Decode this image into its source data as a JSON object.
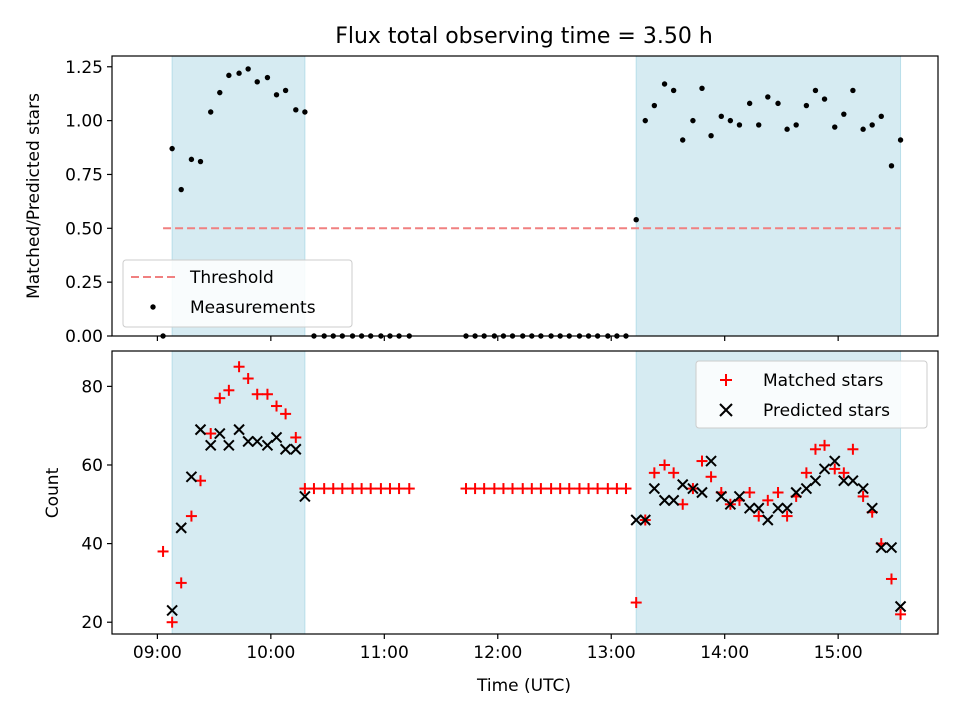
{
  "chart_data": [
    {
      "type": "scatter",
      "title": "Flux total observing time = 3.50 h",
      "xlabel": "",
      "ylabel": "Matched/Predicted stars",
      "xlim": [
        8.6,
        15.88
      ],
      "ylim": [
        0.0,
        1.3
      ],
      "yticks": [
        0.0,
        0.25,
        0.5,
        0.75,
        1.0,
        1.25
      ],
      "ytick_labels": [
        "0.00",
        "0.25",
        "0.50",
        "0.75",
        "1.00",
        "1.25"
      ],
      "xticks": [
        9,
        10,
        11,
        12,
        13,
        14,
        15
      ],
      "shaded_regions": [
        [
          9.13,
          10.3
        ],
        [
          13.22,
          15.55
        ]
      ],
      "threshold": {
        "name": "Threshold",
        "value": 0.5,
        "x_range": [
          9.05,
          15.55
        ],
        "color": "#f08080"
      },
      "legend": {
        "position": "lower-left",
        "entries": [
          "Threshold",
          "Measurements"
        ]
      },
      "series": [
        {
          "name": "Measurements",
          "color": "#000000",
          "marker": "dot",
          "points": [
            [
              9.05,
              0.0
            ],
            [
              9.13,
              0.87
            ],
            [
              9.21,
              0.68
            ],
            [
              9.3,
              0.82
            ],
            [
              9.38,
              0.81
            ],
            [
              9.47,
              1.04
            ],
            [
              9.55,
              1.13
            ],
            [
              9.63,
              1.21
            ],
            [
              9.72,
              1.22
            ],
            [
              9.8,
              1.24
            ],
            [
              9.88,
              1.18
            ],
            [
              9.97,
              1.2
            ],
            [
              10.05,
              1.12
            ],
            [
              10.13,
              1.14
            ],
            [
              10.22,
              1.05
            ],
            [
              10.3,
              1.04
            ],
            [
              10.38,
              0.0
            ],
            [
              10.47,
              0.0
            ],
            [
              10.55,
              0.0
            ],
            [
              10.63,
              0.0
            ],
            [
              10.72,
              0.0
            ],
            [
              10.8,
              0.0
            ],
            [
              10.88,
              0.0
            ],
            [
              10.97,
              0.0
            ],
            [
              11.05,
              0.0
            ],
            [
              11.13,
              0.0
            ],
            [
              11.22,
              0.0
            ],
            [
              11.72,
              0.0
            ],
            [
              11.8,
              0.0
            ],
            [
              11.88,
              0.0
            ],
            [
              11.97,
              0.0
            ],
            [
              12.05,
              0.0
            ],
            [
              12.13,
              0.0
            ],
            [
              12.22,
              0.0
            ],
            [
              12.3,
              0.0
            ],
            [
              12.38,
              0.0
            ],
            [
              12.47,
              0.0
            ],
            [
              12.55,
              0.0
            ],
            [
              12.63,
              0.0
            ],
            [
              12.72,
              0.0
            ],
            [
              12.8,
              0.0
            ],
            [
              12.88,
              0.0
            ],
            [
              12.97,
              0.0
            ],
            [
              13.05,
              0.0
            ],
            [
              13.13,
              0.0
            ],
            [
              13.22,
              0.54
            ],
            [
              13.3,
              1.0
            ],
            [
              13.38,
              1.07
            ],
            [
              13.47,
              1.17
            ],
            [
              13.55,
              1.14
            ],
            [
              13.63,
              0.91
            ],
            [
              13.72,
              1.0
            ],
            [
              13.8,
              1.15
            ],
            [
              13.88,
              0.93
            ],
            [
              13.97,
              1.02
            ],
            [
              14.05,
              1.0
            ],
            [
              14.13,
              0.98
            ],
            [
              14.22,
              1.08
            ],
            [
              14.3,
              0.98
            ],
            [
              14.38,
              1.11
            ],
            [
              14.47,
              1.08
            ],
            [
              14.55,
              0.96
            ],
            [
              14.63,
              0.98
            ],
            [
              14.72,
              1.07
            ],
            [
              14.8,
              1.14
            ],
            [
              14.88,
              1.1
            ],
            [
              14.97,
              0.97
            ],
            [
              15.05,
              1.03
            ],
            [
              15.13,
              1.14
            ],
            [
              15.22,
              0.96
            ],
            [
              15.3,
              0.98
            ],
            [
              15.38,
              1.02
            ],
            [
              15.47,
              0.79
            ],
            [
              15.55,
              0.91
            ]
          ]
        }
      ]
    },
    {
      "type": "scatter",
      "title": "",
      "xlabel": "Time (UTC)",
      "ylabel": "Count",
      "xlim": [
        8.6,
        15.88
      ],
      "ylim": [
        17,
        89
      ],
      "yticks": [
        20,
        40,
        60,
        80
      ],
      "ytick_labels": [
        "20",
        "40",
        "60",
        "80"
      ],
      "xticks": [
        9,
        10,
        11,
        12,
        13,
        14,
        15
      ],
      "xtick_labels": [
        "09:00",
        "10:00",
        "11:00",
        "12:00",
        "13:00",
        "14:00",
        "15:00"
      ],
      "shaded_regions": [
        [
          9.13,
          10.3
        ],
        [
          13.22,
          15.55
        ]
      ],
      "legend": {
        "position": "top-right",
        "entries": [
          "Matched stars",
          "Predicted stars"
        ]
      },
      "series": [
        {
          "name": "Matched stars",
          "color": "#ff0000",
          "marker": "plus",
          "points": [
            [
              9.05,
              38
            ],
            [
              9.13,
              20
            ],
            [
              9.21,
              30
            ],
            [
              9.3,
              47
            ],
            [
              9.38,
              56
            ],
            [
              9.47,
              68
            ],
            [
              9.55,
              77
            ],
            [
              9.63,
              79
            ],
            [
              9.72,
              85
            ],
            [
              9.8,
              82
            ],
            [
              9.88,
              78
            ],
            [
              9.97,
              78
            ],
            [
              10.05,
              75
            ],
            [
              10.13,
              73
            ],
            [
              10.22,
              67
            ],
            [
              10.3,
              54
            ],
            [
              10.38,
              54
            ],
            [
              10.47,
              54
            ],
            [
              10.55,
              54
            ],
            [
              10.63,
              54
            ],
            [
              10.72,
              54
            ],
            [
              10.8,
              54
            ],
            [
              10.88,
              54
            ],
            [
              10.97,
              54
            ],
            [
              11.05,
              54
            ],
            [
              11.13,
              54
            ],
            [
              11.22,
              54
            ],
            [
              11.72,
              54
            ],
            [
              11.8,
              54
            ],
            [
              11.88,
              54
            ],
            [
              11.97,
              54
            ],
            [
              12.05,
              54
            ],
            [
              12.13,
              54
            ],
            [
              12.22,
              54
            ],
            [
              12.3,
              54
            ],
            [
              12.38,
              54
            ],
            [
              12.47,
              54
            ],
            [
              12.55,
              54
            ],
            [
              12.63,
              54
            ],
            [
              12.72,
              54
            ],
            [
              12.8,
              54
            ],
            [
              12.88,
              54
            ],
            [
              12.97,
              54
            ],
            [
              13.05,
              54
            ],
            [
              13.13,
              54
            ],
            [
              13.22,
              25
            ],
            [
              13.3,
              46
            ],
            [
              13.38,
              58
            ],
            [
              13.47,
              60
            ],
            [
              13.55,
              58
            ],
            [
              13.63,
              50
            ],
            [
              13.72,
              54
            ],
            [
              13.8,
              61
            ],
            [
              13.88,
              57
            ],
            [
              13.97,
              53
            ],
            [
              14.05,
              50
            ],
            [
              14.13,
              51
            ],
            [
              14.22,
              53
            ],
            [
              14.3,
              47
            ],
            [
              14.38,
              51
            ],
            [
              14.47,
              53
            ],
            [
              14.55,
              47
            ],
            [
              14.63,
              52
            ],
            [
              14.72,
              58
            ],
            [
              14.8,
              64
            ],
            [
              14.88,
              65
            ],
            [
              14.97,
              59
            ],
            [
              15.05,
              58
            ],
            [
              15.13,
              64
            ],
            [
              15.22,
              52
            ],
            [
              15.3,
              48
            ],
            [
              15.38,
              40
            ],
            [
              15.47,
              31
            ],
            [
              15.55,
              22
            ]
          ]
        },
        {
          "name": "Predicted stars",
          "color": "#000000",
          "marker": "x",
          "points": [
            [
              9.13,
              23
            ],
            [
              9.21,
              44
            ],
            [
              9.3,
              57
            ],
            [
              9.38,
              69
            ],
            [
              9.47,
              65
            ],
            [
              9.55,
              68
            ],
            [
              9.63,
              65
            ],
            [
              9.72,
              69
            ],
            [
              9.8,
              66
            ],
            [
              9.88,
              66
            ],
            [
              9.97,
              65
            ],
            [
              10.05,
              67
            ],
            [
              10.13,
              64
            ],
            [
              10.22,
              64
            ],
            [
              10.3,
              52
            ],
            [
              13.22,
              46
            ],
            [
              13.3,
              46
            ],
            [
              13.38,
              54
            ],
            [
              13.47,
              51
            ],
            [
              13.55,
              51
            ],
            [
              13.63,
              55
            ],
            [
              13.72,
              54
            ],
            [
              13.8,
              53
            ],
            [
              13.88,
              61
            ],
            [
              13.97,
              52
            ],
            [
              14.05,
              50
            ],
            [
              14.13,
              52
            ],
            [
              14.22,
              49
            ],
            [
              14.3,
              49
            ],
            [
              14.38,
              46
            ],
            [
              14.47,
              49
            ],
            [
              14.55,
              49
            ],
            [
              14.63,
              53
            ],
            [
              14.72,
              54
            ],
            [
              14.8,
              56
            ],
            [
              14.88,
              59
            ],
            [
              14.97,
              61
            ],
            [
              15.05,
              56
            ],
            [
              15.13,
              56
            ],
            [
              15.22,
              54
            ],
            [
              15.3,
              49
            ],
            [
              15.38,
              39
            ],
            [
              15.47,
              39
            ],
            [
              15.55,
              24
            ]
          ]
        }
      ]
    }
  ]
}
